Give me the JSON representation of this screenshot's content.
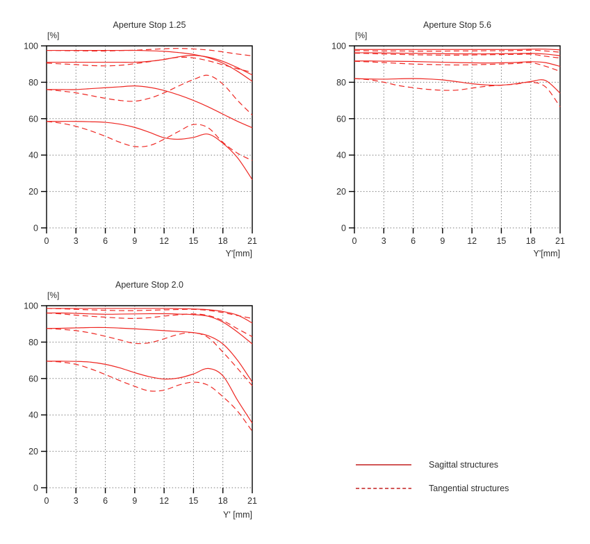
{
  "page": {
    "background": "#ffffff"
  },
  "style": {
    "curve_color": "#ee2722",
    "legend_line_color": "#c21f1f",
    "grid_color": "#7a7a7a",
    "frame_color": "#000000",
    "text_color": "#2e2e2e",
    "tangential_dash": "8 5"
  },
  "legend": {
    "items": [
      {
        "label": "Sagittal structures",
        "style": "solid"
      },
      {
        "label": "Tangential structures",
        "style": "dashed"
      }
    ]
  },
  "chart_data": [
    {
      "type": "line",
      "title": "Aperture Stop 1.25",
      "y_unit": "[%]",
      "xlabel": "Y'[mm]",
      "xlim": [
        0,
        21
      ],
      "ylim": [
        0,
        100
      ],
      "x_ticks": [
        0,
        3,
        6,
        9,
        12,
        15,
        18,
        21
      ],
      "y_ticks": [
        0,
        20,
        40,
        60,
        80,
        100
      ],
      "grid": true,
      "x": [
        0,
        1.5,
        3,
        4.5,
        6,
        7.5,
        9,
        10.5,
        12,
        13.5,
        15,
        16.5,
        18,
        19.5,
        21
      ],
      "series": [
        {
          "name": "sagittal-1",
          "style": "solid",
          "values": [
            97.5,
            97.5,
            97.5,
            97.5,
            97.5,
            97.5,
            97.5,
            97.3,
            97.0,
            96.3,
            95.3,
            93.5,
            90.5,
            86.0,
            80.5
          ]
        },
        {
          "name": "sagittal-2",
          "style": "solid",
          "values": [
            91.0,
            91.0,
            91.0,
            91.0,
            91.0,
            91.0,
            91.0,
            91.5,
            92.5,
            94.0,
            94.8,
            93.8,
            91.5,
            88.0,
            84.0
          ]
        },
        {
          "name": "sagittal-3",
          "style": "solid",
          "values": [
            76.0,
            76.0,
            76.0,
            76.5,
            77.0,
            77.5,
            78.0,
            77.2,
            75.5,
            73.0,
            70.0,
            66.5,
            62.5,
            58.5,
            55.0
          ]
        },
        {
          "name": "sagittal-4",
          "style": "solid",
          "values": [
            58.5,
            58.5,
            58.5,
            58.3,
            58.0,
            57.0,
            55.2,
            52.5,
            49.5,
            48.7,
            49.7,
            51.5,
            46.5,
            38.5,
            26.5
          ]
        },
        {
          "name": "tangential-1",
          "style": "dashed",
          "values": [
            97.5,
            97.4,
            97.3,
            97.2,
            97.2,
            97.4,
            97.6,
            98.0,
            98.4,
            98.6,
            98.3,
            97.7,
            96.7,
            95.5,
            94.5
          ]
        },
        {
          "name": "tangential-2",
          "style": "dashed",
          "values": [
            90.5,
            90.1,
            89.7,
            89.2,
            89.0,
            89.3,
            90.2,
            91.3,
            92.6,
            93.7,
            93.4,
            91.8,
            89.6,
            87.4,
            85.5
          ]
        },
        {
          "name": "tangential-3",
          "style": "dashed",
          "values": [
            76.0,
            75.2,
            74.2,
            72.7,
            71.2,
            70.0,
            69.6,
            71.2,
            74.2,
            78.0,
            81.5,
            83.8,
            79.0,
            70.0,
            62.0
          ]
        },
        {
          "name": "tangential-4",
          "style": "dashed",
          "values": [
            58.5,
            57.5,
            55.8,
            53.3,
            50.3,
            47.0,
            44.7,
            45.2,
            48.7,
            53.0,
            56.8,
            55.0,
            47.0,
            41.0,
            37.0
          ]
        }
      ]
    },
    {
      "type": "line",
      "title": "Aperture Stop 5.6",
      "y_unit": "[%]",
      "xlabel": "Y'[mm]",
      "xlim": [
        0,
        21
      ],
      "ylim": [
        0,
        100
      ],
      "x_ticks": [
        0,
        3,
        6,
        9,
        12,
        15,
        18,
        21
      ],
      "y_ticks": [
        0,
        20,
        40,
        60,
        80,
        100
      ],
      "grid": true,
      "x": [
        0,
        1.5,
        3,
        4.5,
        6,
        7.5,
        9,
        10.5,
        12,
        13.5,
        15,
        16.5,
        18,
        19.5,
        21
      ],
      "series": [
        {
          "name": "sagittal-1",
          "style": "solid",
          "values": [
            98.0,
            98.0,
            98.0,
            98.0,
            98.0,
            98.0,
            98.0,
            98.0,
            98.0,
            98.0,
            98.0,
            98.0,
            98.2,
            98.2,
            97.8
          ]
        },
        {
          "name": "sagittal-2",
          "style": "solid",
          "values": [
            96.2,
            96.2,
            96.1,
            96.0,
            95.9,
            95.8,
            95.7,
            95.6,
            95.6,
            95.6,
            95.7,
            95.8,
            95.9,
            95.5,
            94.6
          ]
        },
        {
          "name": "sagittal-3",
          "style": "solid",
          "values": [
            91.7,
            91.7,
            91.6,
            91.5,
            91.4,
            91.2,
            91.0,
            90.8,
            90.7,
            90.6,
            90.7,
            90.9,
            91.3,
            90.8,
            88.7
          ]
        },
        {
          "name": "sagittal-4",
          "style": "solid",
          "values": [
            82.0,
            81.8,
            81.7,
            81.9,
            82.0,
            81.8,
            81.3,
            80.3,
            79.2,
            78.5,
            78.4,
            79.2,
            80.4,
            81.0,
            74.0
          ]
        },
        {
          "name": "tangential-1",
          "style": "dashed",
          "values": [
            97.4,
            97.3,
            97.2,
            97.2,
            97.1,
            97.1,
            97.1,
            97.2,
            97.2,
            97.3,
            97.3,
            97.4,
            97.6,
            97.2,
            96.5
          ]
        },
        {
          "name": "tangential-2",
          "style": "dashed",
          "values": [
            96.0,
            95.8,
            95.5,
            95.3,
            95.1,
            95.0,
            94.9,
            94.9,
            95.0,
            95.1,
            95.2,
            95.3,
            95.4,
            94.3,
            93.3
          ]
        },
        {
          "name": "tangential-3",
          "style": "dashed",
          "values": [
            91.5,
            91.2,
            90.8,
            90.4,
            90.0,
            89.8,
            89.6,
            89.5,
            89.6,
            89.8,
            90.0,
            90.3,
            90.8,
            88.8,
            86.0
          ]
        },
        {
          "name": "tangential-4",
          "style": "dashed",
          "values": [
            82.0,
            81.4,
            80.0,
            78.2,
            77.0,
            76.1,
            75.6,
            75.7,
            76.8,
            77.8,
            78.4,
            79.0,
            80.0,
            77.5,
            66.5
          ]
        }
      ]
    },
    {
      "type": "line",
      "title": "Aperture Stop 2.0",
      "y_unit": "[%]",
      "xlabel": "Y' [mm]",
      "xlim": [
        0,
        21
      ],
      "ylim": [
        0,
        100
      ],
      "x_ticks": [
        0,
        3,
        6,
        9,
        12,
        15,
        18,
        21
      ],
      "y_ticks": [
        0,
        20,
        40,
        60,
        80,
        100
      ],
      "grid": true,
      "x": [
        0,
        1.5,
        3,
        4.5,
        6,
        7.5,
        9,
        10.5,
        12,
        13.5,
        15,
        16.5,
        18,
        19.5,
        21
      ],
      "series": [
        {
          "name": "sagittal-1",
          "style": "solid",
          "values": [
            98.5,
            98.5,
            98.5,
            98.5,
            98.5,
            98.5,
            98.5,
            98.5,
            98.5,
            98.4,
            98.2,
            97.8,
            96.8,
            94.8,
            90.5
          ]
        },
        {
          "name": "sagittal-2",
          "style": "solid",
          "values": [
            96.0,
            96.0,
            95.8,
            95.5,
            95.3,
            95.4,
            95.5,
            95.6,
            95.6,
            95.4,
            95.1,
            94.2,
            91.0,
            85.5,
            79.0
          ]
        },
        {
          "name": "sagittal-3",
          "style": "solid",
          "values": [
            87.5,
            87.6,
            87.8,
            88.0,
            88.0,
            87.7,
            87.3,
            86.8,
            86.3,
            85.8,
            85.2,
            83.5,
            79.0,
            70.0,
            58.0
          ]
        },
        {
          "name": "sagittal-4",
          "style": "solid",
          "values": [
            69.5,
            69.5,
            69.4,
            69.0,
            67.8,
            65.8,
            63.2,
            61.0,
            59.7,
            60.3,
            62.5,
            65.5,
            61.5,
            48.0,
            35.5
          ]
        },
        {
          "name": "tangential-1",
          "style": "dashed",
          "values": [
            98.5,
            98.3,
            98.0,
            97.7,
            97.5,
            97.3,
            97.3,
            97.5,
            97.7,
            97.9,
            98.0,
            97.4,
            96.2,
            94.6,
            93.0
          ]
        },
        {
          "name": "tangential-2",
          "style": "dashed",
          "values": [
            96.0,
            95.5,
            94.8,
            94.2,
            93.7,
            93.2,
            93.0,
            93.4,
            94.3,
            95.0,
            95.5,
            94.6,
            91.8,
            87.3,
            83.0
          ]
        },
        {
          "name": "tangential-3",
          "style": "dashed",
          "values": [
            87.5,
            87.0,
            86.3,
            85.0,
            83.2,
            81.2,
            79.3,
            79.6,
            81.8,
            84.3,
            85.2,
            82.5,
            74.5,
            65.5,
            56.0
          ]
        },
        {
          "name": "tangential-4",
          "style": "dashed",
          "values": [
            69.5,
            69.0,
            67.8,
            65.3,
            62.2,
            58.8,
            55.7,
            53.2,
            53.6,
            56.4,
            58.0,
            56.3,
            50.0,
            42.0,
            31.0
          ]
        }
      ]
    }
  ]
}
